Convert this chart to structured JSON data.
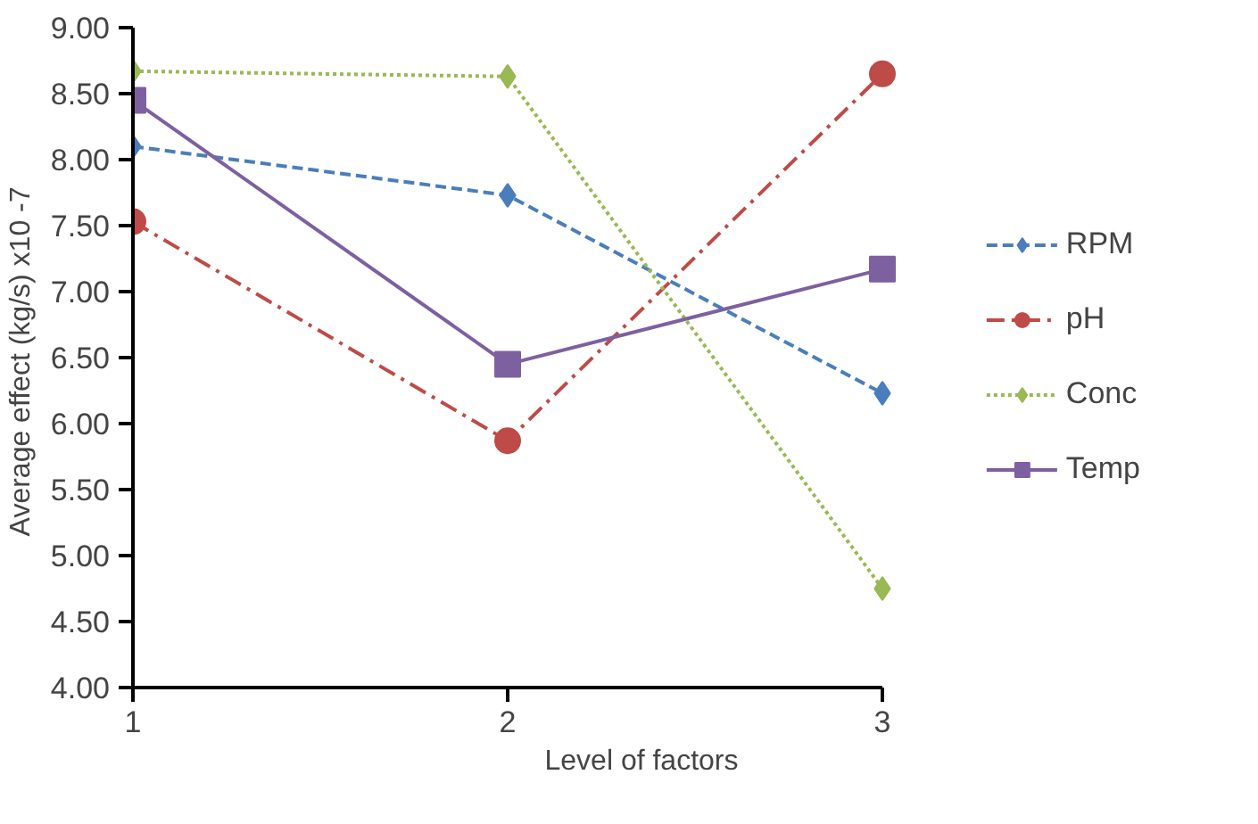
{
  "chart_data": {
    "type": "line",
    "xlabel": "Level of factors",
    "ylabel": "Average effect  (kg/s) x10 -7",
    "x": [
      1,
      2,
      3
    ],
    "xlim": [
      1,
      3
    ],
    "xticks": [
      1,
      2,
      3
    ],
    "ylim": [
      4,
      9
    ],
    "yticks": [
      {
        "value": 4,
        "label": "4.00"
      },
      {
        "value": 4.5,
        "label": "4.50"
      },
      {
        "value": 5,
        "label": "5.00"
      },
      {
        "value": 5.5,
        "label": "5.50"
      },
      {
        "value": 6,
        "label": "6.00"
      },
      {
        "value": 6.5,
        "label": "6.50"
      },
      {
        "value": 7,
        "label": "7.00"
      },
      {
        "value": 7.5,
        "label": "7.50"
      },
      {
        "value": 8,
        "label": "8.00"
      },
      {
        "value": 8.5,
        "label": "8.50"
      },
      {
        "value": 9,
        "label": "9.00"
      }
    ],
    "series": [
      {
        "name": "RPM",
        "color": "#4a7ebb",
        "values": [
          8.1,
          7.73,
          6.23
        ],
        "marker": "diamond",
        "line_style": "dashed"
      },
      {
        "name": "pH",
        "color": "#be4b48",
        "values": [
          7.53,
          5.87,
          8.65
        ],
        "marker": "circle",
        "line_style": "dashdot"
      },
      {
        "name": "Conc",
        "color": "#98b954",
        "values": [
          8.67,
          8.63,
          4.75
        ],
        "marker": "diamond",
        "line_style": "dotted"
      },
      {
        "name": "Temp",
        "color": "#7d60a0",
        "values": [
          8.45,
          6.45,
          7.17
        ],
        "marker": "square",
        "line_style": "solid"
      }
    ],
    "grid": false,
    "legend": "right"
  }
}
